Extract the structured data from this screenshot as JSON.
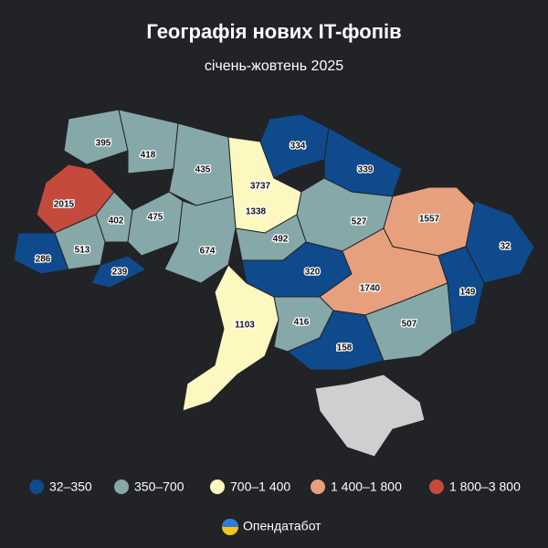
{
  "title": "Географія нових IT-фопів",
  "subtitle": "січень-жовтень 2025",
  "regions": [
    {
      "value": 395,
      "color": "#86a8a8"
    },
    {
      "value": 418,
      "color": "#86a8a8"
    },
    {
      "value": 435,
      "color": "#86a8a8"
    },
    {
      "value": 3737,
      "color": "#c44a3e"
    },
    {
      "value": 1338,
      "color": "#fdf8c0"
    },
    {
      "value": 334,
      "color": "#0f4a8c"
    },
    {
      "value": 339,
      "color": "#0f4a8c"
    },
    {
      "value": 2015,
      "color": "#c44a3e"
    },
    {
      "value": 402,
      "color": "#86a8a8"
    },
    {
      "value": 475,
      "color": "#86a8a8"
    },
    {
      "value": 527,
      "color": "#86a8a8"
    },
    {
      "value": 1557,
      "color": "#e6a07e"
    },
    {
      "value": 32,
      "color": "#0f4a8c"
    },
    {
      "value": 286,
      "color": "#0f4a8c"
    },
    {
      "value": 513,
      "color": "#86a8a8"
    },
    {
      "value": 674,
      "color": "#86a8a8"
    },
    {
      "value": 492,
      "color": "#86a8a8"
    },
    {
      "value": 239,
      "color": "#0f4a8c"
    },
    {
      "value": 320,
      "color": "#0f4a8c"
    },
    {
      "value": 1740,
      "color": "#e6a07e"
    },
    {
      "value": 149,
      "color": "#0f4a8c"
    },
    {
      "value": 1103,
      "color": "#fdf8c0"
    },
    {
      "value": 416,
      "color": "#86a8a8"
    },
    {
      "value": 507,
      "color": "#86a8a8"
    },
    {
      "value": 158,
      "color": "#0f4a8c"
    }
  ],
  "legend": [
    {
      "label": "32–350",
      "color": "#0f4a8c"
    },
    {
      "label": "350–700",
      "color": "#86a8a8"
    },
    {
      "label": "700–1 400",
      "color": "#fdf8c0"
    },
    {
      "label": "1 400–1 800",
      "color": "#e6a07e"
    },
    {
      "label": "1 800–3 800",
      "color": "#c44a3e"
    }
  ],
  "brand": "Опендатабот"
}
